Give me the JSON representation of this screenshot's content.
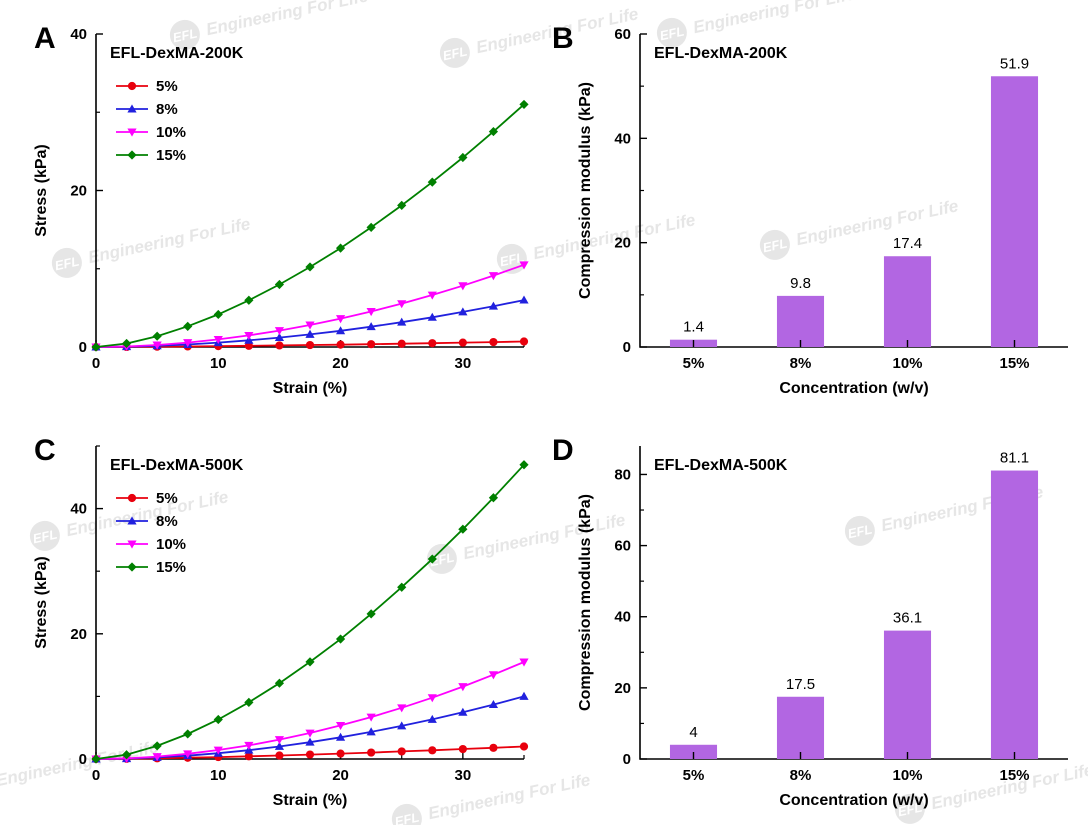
{
  "watermark": {
    "logo": "EFL",
    "text": "Engineering For Life"
  },
  "panels": [
    {
      "label": "A"
    },
    {
      "label": "B"
    },
    {
      "label": "C"
    },
    {
      "label": "D"
    }
  ],
  "chart_data": [
    {
      "type": "line",
      "title": "EFL-DexMA-200K",
      "xlabel": "Strain (%)",
      "ylabel": "Stress (kPa)",
      "xlim": [
        0,
        35
      ],
      "ylim": [
        0,
        40
      ],
      "xticks": [
        0,
        10,
        20,
        30
      ],
      "yticks": [
        0,
        20,
        40
      ],
      "legend_position": "upper-left-inside",
      "grid": false,
      "x": [
        0,
        2.5,
        5,
        7.5,
        10,
        12.5,
        15,
        17.5,
        20,
        22.5,
        25,
        27.5,
        30,
        32.5,
        35
      ],
      "series": [
        {
          "name": "5%",
          "color": "#e8000d",
          "marker": "circle",
          "y": [
            0,
            0.01,
            0.04,
            0.07,
            0.11,
            0.15,
            0.2,
            0.25,
            0.3,
            0.36,
            0.42,
            0.49,
            0.56,
            0.63,
            0.7
          ]
        },
        {
          "name": "8%",
          "color": "#2121de",
          "marker": "triangle-up",
          "y": [
            0,
            0.04,
            0.15,
            0.32,
            0.56,
            0.85,
            1.2,
            1.61,
            2.07,
            2.59,
            3.17,
            3.79,
            4.48,
            5.21,
            6.0
          ]
        },
        {
          "name": "10%",
          "color": "#ff00ff",
          "marker": "triangle-down",
          "y": [
            0,
            0.07,
            0.26,
            0.56,
            0.97,
            1.48,
            2.1,
            2.81,
            3.63,
            4.54,
            5.54,
            6.64,
            7.83,
            9.12,
            10.5
          ]
        },
        {
          "name": "15%",
          "color": "#008000",
          "marker": "diamond",
          "y": [
            0,
            0.45,
            1.38,
            2.64,
            4.16,
            5.97,
            7.99,
            10.23,
            12.64,
            15.29,
            18.1,
            21.07,
            24.22,
            27.53,
            31.0
          ]
        }
      ]
    },
    {
      "type": "bar",
      "title": "EFL-DexMA-200K",
      "xlabel": "Concentration (w/v)",
      "ylabel": "Compression modulus (kPa)",
      "categories": [
        "5%",
        "8%",
        "10%",
        "15%"
      ],
      "values": [
        1.4,
        9.8,
        17.4,
        51.9
      ],
      "value_labels": [
        "1.4",
        "9.8",
        "17.4",
        "51.9"
      ],
      "ylim": [
        0,
        60
      ],
      "yticks": [
        0,
        20,
        40,
        60
      ],
      "grid": false,
      "bar_color": "#b266e2"
    },
    {
      "type": "line",
      "title": "EFL-DexMA-500K",
      "xlabel": "Strain (%)",
      "ylabel": "Stress (kPa)",
      "xlim": [
        0,
        35
      ],
      "ylim": [
        0,
        50
      ],
      "xticks": [
        0,
        10,
        20,
        30
      ],
      "yticks": [
        0,
        20,
        40
      ],
      "legend_position": "upper-left-inside",
      "grid": false,
      "x": [
        0,
        2.5,
        5,
        7.5,
        10,
        12.5,
        15,
        17.5,
        20,
        22.5,
        25,
        27.5,
        30,
        32.5,
        35
      ],
      "series": [
        {
          "name": "5%",
          "color": "#e8000d",
          "marker": "circle",
          "y": [
            0,
            0.04,
            0.11,
            0.2,
            0.31,
            0.43,
            0.56,
            0.71,
            0.86,
            1.03,
            1.21,
            1.39,
            1.59,
            1.79,
            2.0
          ]
        },
        {
          "name": "8%",
          "color": "#2121de",
          "marker": "triangle-up",
          "y": [
            0,
            0.06,
            0.25,
            0.53,
            0.92,
            1.41,
            2.0,
            2.68,
            3.46,
            4.33,
            5.28,
            6.32,
            7.46,
            8.69,
            10.0
          ]
        },
        {
          "name": "10%",
          "color": "#ff00ff",
          "marker": "triangle-down",
          "y": [
            0,
            0.1,
            0.38,
            0.83,
            1.43,
            2.18,
            3.1,
            4.15,
            5.36,
            6.7,
            8.18,
            9.8,
            11.56,
            13.46,
            15.5
          ]
        },
        {
          "name": "15%",
          "color": "#008000",
          "marker": "diamond",
          "y": [
            0,
            0.68,
            2.09,
            4.0,
            6.31,
            9.05,
            12.11,
            15.51,
            19.16,
            23.18,
            27.44,
            31.94,
            36.71,
            41.73,
            47.0
          ]
        }
      ]
    },
    {
      "type": "bar",
      "title": "EFL-DexMA-500K",
      "xlabel": "Concentration (w/v)",
      "ylabel": "Compression modulus (kPa)",
      "categories": [
        "5%",
        "8%",
        "10%",
        "15%"
      ],
      "values": [
        4,
        17.5,
        36.1,
        81.1
      ],
      "value_labels": [
        "4",
        "17.5",
        "36.1",
        "81.1"
      ],
      "ylim": [
        0,
        88
      ],
      "yticks": [
        0,
        20,
        40,
        60,
        80
      ],
      "grid": false,
      "bar_color": "#b266e2"
    }
  ]
}
